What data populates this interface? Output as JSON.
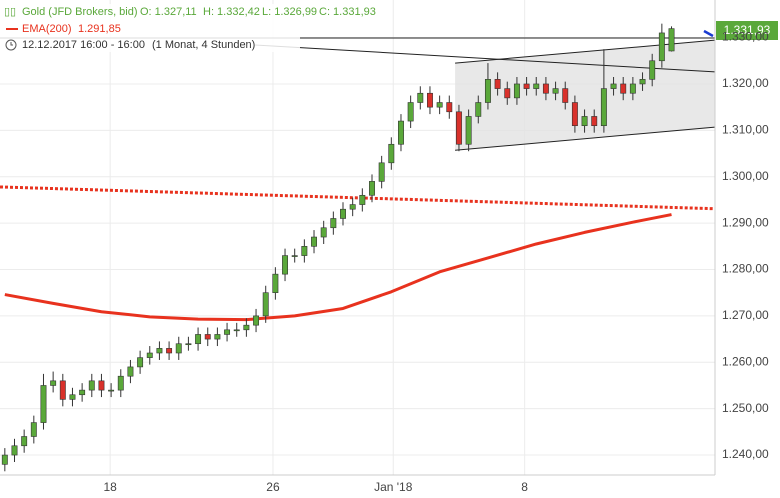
{
  "chart_data": {
    "type": "candlestick",
    "legend": {
      "instrument": "Gold (JFD Brokers, bid)",
      "ohlc": [
        "O: 1.327,11",
        "H: 1.332,42",
        "L: 1.326,99",
        "C: 1.331,93"
      ],
      "indicator": "EMA(200)",
      "indicator_value": "1.291,85",
      "period": "12.12.2017 16:00 - 16:00",
      "range": "(1 Monat, 4 Stunden)"
    },
    "last_price": "1.331,93",
    "up_color": "#5aa83a",
    "down_color": "#d9312b",
    "open": [
      1238,
      1240,
      1242,
      1244,
      1247,
      1255,
      1256,
      1252,
      1253,
      1254,
      1256,
      1254,
      1254,
      1257,
      1259,
      1261,
      1262,
      1263,
      1262,
      1264,
      1264,
      1266,
      1265,
      1266,
      1267,
      1267,
      1268,
      1270,
      1275,
      1279,
      1283,
      1283,
      1285,
      1287,
      1289,
      1291,
      1293,
      1294,
      1296,
      1299,
      1303,
      1307,
      1312,
      1316,
      1318,
      1315,
      1316,
      1314,
      1307,
      1313,
      1316,
      1321,
      1319,
      1317,
      1320,
      1319,
      1320,
      1318,
      1319,
      1316,
      1311,
      1313,
      1311,
      1319,
      1320,
      1318,
      1320,
      1321,
      1325,
      1327.11
    ],
    "high": [
      1241.5,
      1243.5,
      1245.5,
      1248.5,
      1257.5,
      1258,
      1257.5,
      1254.5,
      1255.5,
      1257.5,
      1257.5,
      1255.5,
      1258.5,
      1260.5,
      1262.5,
      1263.5,
      1264.5,
      1264.5,
      1265.5,
      1265.5,
      1267.5,
      1267.5,
      1267.5,
      1268.5,
      1268.5,
      1269.5,
      1271.5,
      1276.5,
      1280.5,
      1284.5,
      1284.5,
      1286.5,
      1288.5,
      1290.5,
      1292.5,
      1294.5,
      1295.5,
      1297.5,
      1300.5,
      1304.5,
      1308.5,
      1313.5,
      1317.5,
      1319.5,
      1319.5,
      1317.5,
      1317.5,
      1315.5,
      1314.5,
      1317.5,
      1324.5,
      1322.5,
      1320.5,
      1321.5,
      1321.5,
      1321.5,
      1321.5,
      1320.5,
      1320.5,
      1317.5,
      1314.5,
      1314.5,
      1327.5,
      1321.5,
      1321.5,
      1321.5,
      1322.5,
      1326.5,
      1333,
      1332.42
    ],
    "low": [
      1236.5,
      1238.5,
      1240.5,
      1242.5,
      1245.5,
      1253.5,
      1250.5,
      1250.5,
      1251.5,
      1252.5,
      1252.5,
      1252.5,
      1252.5,
      1255.5,
      1257.5,
      1259.5,
      1260.5,
      1260.5,
      1260.5,
      1262.5,
      1262.5,
      1263.5,
      1263.5,
      1264.5,
      1265.5,
      1265.5,
      1266.5,
      1268.5,
      1273.5,
      1277.5,
      1281.5,
      1281.5,
      1283.5,
      1285.5,
      1287.5,
      1289.5,
      1291.5,
      1292.5,
      1294.5,
      1297.5,
      1301.5,
      1305.5,
      1310.5,
      1314.5,
      1313.5,
      1313.5,
      1312.5,
      1305.5,
      1305.5,
      1311.5,
      1314.5,
      1317.5,
      1315.5,
      1315.5,
      1317.5,
      1317.5,
      1316.5,
      1316.5,
      1314.5,
      1309.5,
      1309.5,
      1309.5,
      1309.5,
      1317.5,
      1316.5,
      1316.5,
      1318.5,
      1319.5,
      1323.5,
      1326.99
    ],
    "close": [
      1240,
      1242,
      1244,
      1247,
      1255,
      1256,
      1252,
      1253,
      1254,
      1256,
      1254,
      1254,
      1257,
      1259,
      1261,
      1262,
      1263,
      1262,
      1264,
      1264,
      1266,
      1265,
      1266,
      1267,
      1267,
      1268,
      1270,
      1275,
      1279,
      1283,
      1283,
      1285,
      1287,
      1289,
      1291,
      1293,
      1294,
      1296,
      1299,
      1303,
      1307,
      1312,
      1316,
      1318,
      1315,
      1316,
      1314,
      1307,
      1313,
      1316,
      1321,
      1319,
      1317,
      1320,
      1319,
      1320,
      1318,
      1319,
      1316,
      1311,
      1313,
      1311,
      1319,
      1320,
      1318,
      1320,
      1321,
      1325,
      1331,
      1331.93
    ],
    "ema": {
      "name": "EMA(200)",
      "color": "#e8321e",
      "x": [
        0,
        5,
        10,
        15,
        20,
        25,
        30,
        35,
        40,
        45,
        50,
        55,
        60,
        65,
        69
      ],
      "values": [
        1274.6,
        1272.7,
        1270.9,
        1269.8,
        1269.3,
        1269.2,
        1270.0,
        1271.6,
        1275.2,
        1279.5,
        1282.5,
        1285.5,
        1288.0,
        1290.2,
        1291.85
      ]
    },
    "trendlines": [
      {
        "x": [
          -0.5,
          73.5
        ],
        "values": [
          1297.8,
          1293.1
        ],
        "color": "#e8321e",
        "style": "dotted"
      },
      {
        "x": [
          -0.5,
          73.5
        ],
        "values": [
          1329.9,
          1329.9
        ],
        "color": "#222222",
        "style": "solid"
      },
      {
        "x": [
          25.9,
          73.5
        ],
        "values": [
          1328.4,
          1322.6
        ],
        "color": "#222222",
        "style": "solid"
      }
    ],
    "channel": {
      "x": [
        46.6,
        73.5
      ],
      "upper": [
        1324.5,
        1329.45
      ],
      "lower": [
        1305.7,
        1310.7
      ],
      "color": "#222222"
    },
    "xlim": [
      -0.5,
      73.5
    ],
    "xticks": [
      {
        "value": 10.9,
        "label": "18"
      },
      {
        "value": 27.75,
        "label": "26"
      },
      {
        "value": 40.2,
        "label": "Jan '18"
      },
      {
        "value": 53.8,
        "label": "8"
      }
    ],
    "ylim": [
      1235.7,
      1338.1
    ],
    "yticks": [
      {
        "value": 1240,
        "label": "1.240,00"
      },
      {
        "value": 1250,
        "label": "1.250,00"
      },
      {
        "value": 1260,
        "label": "1.260,00"
      },
      {
        "value": 1270,
        "label": "1.270,00"
      },
      {
        "value": 1280,
        "label": "1.280,00"
      },
      {
        "value": 1290,
        "label": "1.290,00"
      },
      {
        "value": 1300,
        "label": "1.300,00"
      },
      {
        "value": 1310,
        "label": "1.310,00"
      },
      {
        "value": 1320,
        "label": "1.320,00"
      },
      {
        "value": 1330,
        "label": "1.330,00"
      }
    ],
    "grid": true
  }
}
